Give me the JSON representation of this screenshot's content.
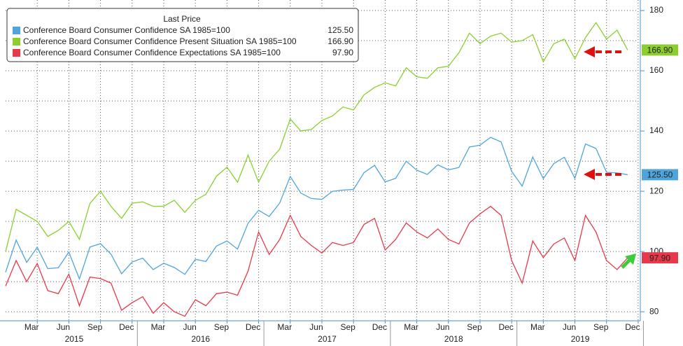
{
  "chart_data": {
    "type": "line",
    "legend_title": "Last Price",
    "x": [
      "2014-12",
      "2015-01",
      "2015-02",
      "2015-03",
      "2015-04",
      "2015-05",
      "2015-06",
      "2015-07",
      "2015-08",
      "2015-09",
      "2015-10",
      "2015-11",
      "2015-12",
      "2016-01",
      "2016-02",
      "2016-03",
      "2016-04",
      "2016-05",
      "2016-06",
      "2016-07",
      "2016-08",
      "2016-09",
      "2016-10",
      "2016-11",
      "2016-12",
      "2017-01",
      "2017-02",
      "2017-03",
      "2017-04",
      "2017-05",
      "2017-06",
      "2017-07",
      "2017-08",
      "2017-09",
      "2017-10",
      "2017-11",
      "2017-12",
      "2018-01",
      "2018-02",
      "2018-03",
      "2018-04",
      "2018-05",
      "2018-06",
      "2018-07",
      "2018-08",
      "2018-09",
      "2018-10",
      "2018-11",
      "2018-12",
      "2019-01",
      "2019-02",
      "2019-03",
      "2019-04",
      "2019-05",
      "2019-06",
      "2019-07",
      "2019-08",
      "2019-09",
      "2019-10",
      "2019-11"
    ],
    "series": [
      {
        "name": "Conference Board Consumer Confidence SA 1985=100",
        "color": "#4ea5dd",
        "last_label": "125.50",
        "tag_text_color": "#111",
        "values": [
          93.1,
          103.8,
          96.4,
          101.4,
          94.3,
          94.6,
          99.8,
          90.9,
          101.5,
          102.6,
          99.1,
          92.6,
          96.5,
          97.8,
          94.0,
          96.1,
          94.7,
          92.4,
          97.4,
          96.7,
          101.8,
          103.5,
          100.8,
          109.4,
          113.7,
          111.6,
          116.1,
          124.9,
          119.4,
          117.6,
          117.3,
          120.0,
          120.4,
          120.6,
          126.2,
          128.6,
          123.1,
          124.3,
          130.0,
          127.0,
          125.6,
          128.8,
          127.1,
          127.9,
          134.7,
          135.3,
          137.9,
          136.4,
          126.6,
          121.7,
          131.4,
          124.2,
          129.2,
          131.3,
          124.3,
          135.7,
          134.2,
          126.3,
          126.1,
          125.5
        ]
      },
      {
        "name": "Conference Board Consumer Confidence Present Situation SA 1985=100",
        "color": "#8ccf2d",
        "last_label": "166.90",
        "tag_text_color": "#111",
        "values": [
          100,
          114,
          112,
          110,
          105,
          107,
          110,
          104,
          116,
          120,
          115,
          111,
          116,
          116.5,
          115,
          115,
          117,
          113,
          117,
          119,
          125,
          128,
          123,
          132,
          123,
          130,
          134,
          144,
          140,
          140.5,
          143.5,
          145,
          148,
          147,
          152,
          154.5,
          156,
          155,
          161,
          158,
          157.5,
          161,
          161.5,
          166,
          172.5,
          169,
          171.5,
          172.5,
          169.5,
          170,
          172,
          163,
          169,
          170.5,
          164,
          171,
          176,
          170.5,
          173.5,
          166.9
        ]
      },
      {
        "name": "Conference Board Consumer Confidence Expectations SA 1985=100",
        "color": "#e8394a",
        "last_label": "97.90",
        "tag_text_color": "#fff",
        "values": [
          88.5,
          97,
          90,
          96,
          87,
          86,
          92.5,
          82,
          91.5,
          91,
          89.5,
          80.5,
          83,
          85,
          79.5,
          83,
          80,
          78.5,
          84,
          82,
          86,
          86.5,
          85.5,
          93.5,
          106.5,
          99,
          104,
          112,
          105,
          102,
          99.5,
          103,
          102,
          103,
          109,
          111,
          100.5,
          104,
          109.5,
          106.5,
          104.5,
          107.5,
          104,
          102.5,
          109.5,
          112.5,
          115,
          112,
          97,
          89.5,
          103.5,
          98,
          102.5,
          104.5,
          97,
          112,
          106.5,
          97,
          94,
          97.9
        ]
      }
    ],
    "ylim": [
      77,
      183.5
    ],
    "yticks": [
      80,
      100,
      120,
      140,
      160,
      180
    ],
    "minor_yticks": [
      90,
      110,
      130,
      150,
      170
    ],
    "xlim": [
      "2014-12",
      "2020-01"
    ],
    "xticks": [
      {
        "value": "2015-03",
        "label": "Mar"
      },
      {
        "value": "2015-06",
        "label": "Jun"
      },
      {
        "value": "2015-09",
        "label": "Sep"
      },
      {
        "value": "2015-12",
        "label": "Dec"
      },
      {
        "value": "2016-03",
        "label": "Mar"
      },
      {
        "value": "2016-06",
        "label": "Jun"
      },
      {
        "value": "2016-09",
        "label": "Sep"
      },
      {
        "value": "2016-12",
        "label": "Dec"
      },
      {
        "value": "2017-03",
        "label": "Mar"
      },
      {
        "value": "2017-06",
        "label": "Jun"
      },
      {
        "value": "2017-09",
        "label": "Sep"
      },
      {
        "value": "2017-12",
        "label": "Dec"
      },
      {
        "value": "2018-03",
        "label": "Mar"
      },
      {
        "value": "2018-06",
        "label": "Jun"
      },
      {
        "value": "2018-09",
        "label": "Sep"
      },
      {
        "value": "2018-12",
        "label": "Dec"
      },
      {
        "value": "2019-03",
        "label": "Mar"
      },
      {
        "value": "2019-06",
        "label": "Jun"
      },
      {
        "value": "2019-09",
        "label": "Sep"
      },
      {
        "value": "2019-12",
        "label": "Dec"
      }
    ],
    "years": [
      "2015",
      "2016",
      "2017",
      "2018",
      "2019"
    ],
    "grid": true
  }
}
